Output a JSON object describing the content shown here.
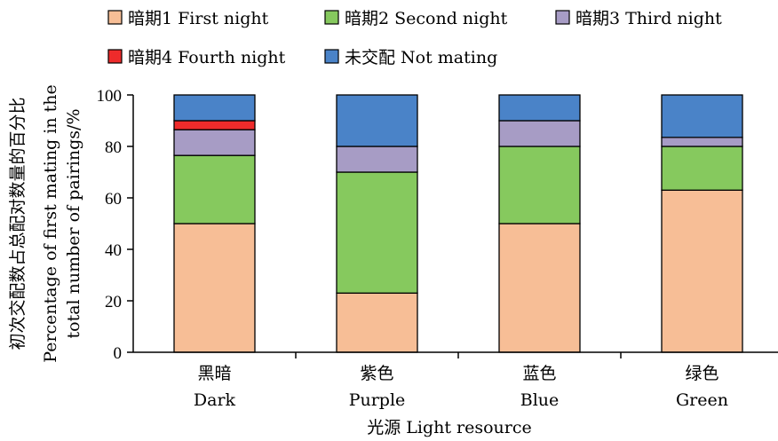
{
  "chart_data": {
    "type": "bar",
    "stacked": true,
    "categories": [
      {
        "cn": "黑暗",
        "en": "Dark"
      },
      {
        "cn": "紫色",
        "en": "Purple"
      },
      {
        "cn": "蓝色",
        "en": "Blue"
      },
      {
        "cn": "绿色",
        "en": "Green"
      }
    ],
    "series": [
      {
        "name": "暗期1  First night",
        "color": "#F7BE96",
        "values": [
          50,
          23,
          50,
          63
        ]
      },
      {
        "name": "暗期2  Second night",
        "color": "#86C95E",
        "values": [
          26.5,
          47,
          30,
          17
        ]
      },
      {
        "name": "暗期3  Third night",
        "color": "#A79CC5",
        "values": [
          10,
          10,
          10,
          3.5
        ]
      },
      {
        "name": "暗期4  Fourth night",
        "color": "#EE2B2B",
        "values": [
          3.5,
          0,
          0,
          0
        ]
      },
      {
        "name": "未交配  Not mating",
        "color": "#4A83C8",
        "values": [
          10,
          20,
          10,
          16.5
        ]
      }
    ],
    "ylim": [
      0,
      100
    ],
    "yticks": [
      "0",
      "20",
      "40",
      "60",
      "80",
      "100"
    ],
    "xlabel": "光源  Light resource",
    "ylabel_cn": "初次交配数占总配对数量的百分比",
    "ylabel_en_line1": "Percentage of first mating in the",
    "ylabel_en_line2": "total number of pairings/%",
    "legend_position": "top",
    "grid": false
  }
}
